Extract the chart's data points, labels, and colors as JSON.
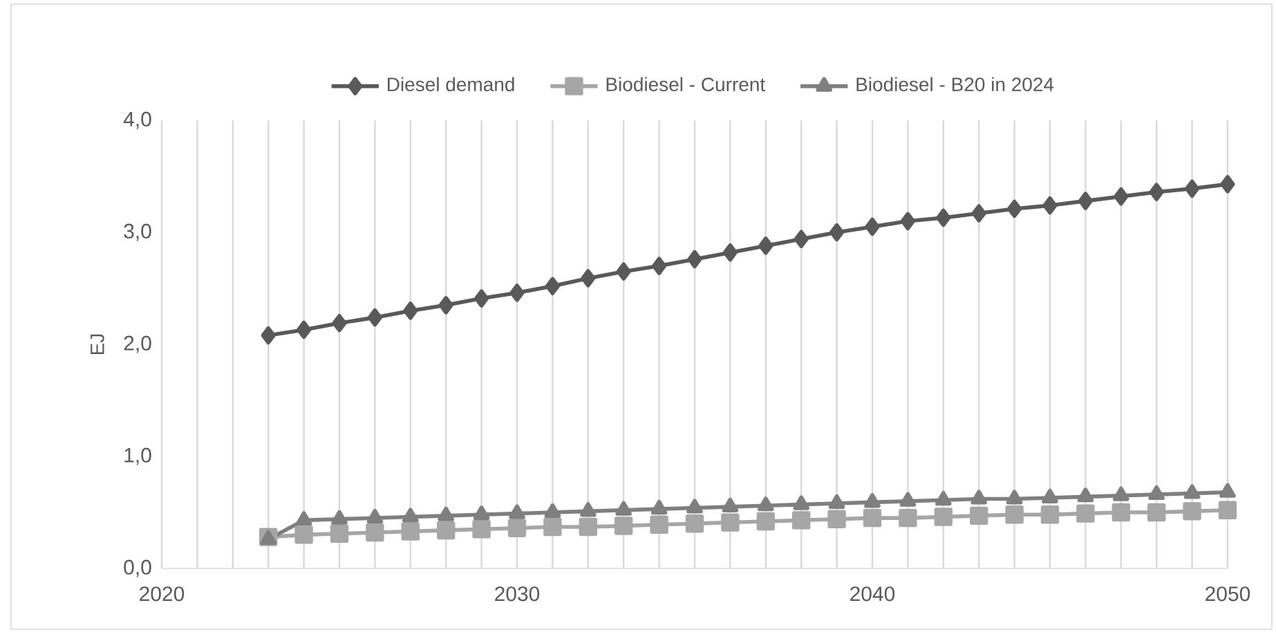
{
  "chart_data": {
    "type": "line",
    "x": [
      2023,
      2024,
      2025,
      2026,
      2027,
      2028,
      2029,
      2030,
      2031,
      2032,
      2033,
      2034,
      2035,
      2036,
      2037,
      2038,
      2039,
      2040,
      2041,
      2042,
      2043,
      2044,
      2045,
      2046,
      2047,
      2048,
      2049,
      2050
    ],
    "series": [
      {
        "name": "Diesel demand",
        "color": "#595959",
        "marker": "diamond",
        "values": [
          2.08,
          2.13,
          2.19,
          2.24,
          2.3,
          2.35,
          2.41,
          2.46,
          2.52,
          2.59,
          2.65,
          2.7,
          2.76,
          2.82,
          2.88,
          2.94,
          3.0,
          3.05,
          3.1,
          3.13,
          3.17,
          3.21,
          3.24,
          3.28,
          3.32,
          3.36,
          3.39,
          3.43
        ]
      },
      {
        "name": "Biodiesel - Current",
        "color": "#a6a6a6",
        "marker": "square",
        "values": [
          0.28,
          0.3,
          0.31,
          0.32,
          0.33,
          0.34,
          0.35,
          0.36,
          0.37,
          0.37,
          0.38,
          0.39,
          0.4,
          0.41,
          0.42,
          0.43,
          0.44,
          0.45,
          0.45,
          0.46,
          0.47,
          0.48,
          0.48,
          0.49,
          0.5,
          0.5,
          0.51,
          0.52
        ]
      },
      {
        "name": "Biodiesel - B20 in 2024",
        "color": "#7f7f7f",
        "marker": "triangle",
        "values": [
          0.26,
          0.43,
          0.44,
          0.45,
          0.46,
          0.47,
          0.48,
          0.49,
          0.5,
          0.51,
          0.52,
          0.53,
          0.54,
          0.55,
          0.56,
          0.57,
          0.58,
          0.59,
          0.6,
          0.61,
          0.62,
          0.62,
          0.63,
          0.64,
          0.65,
          0.66,
          0.67,
          0.68
        ]
      }
    ],
    "ylabel": "EJ",
    "xlim": [
      2020,
      2050
    ],
    "xticks": [
      2020,
      {
        "value": 2021,
        "label": null
      },
      {
        "value": 2022,
        "label": null
      },
      {
        "value": 2023,
        "label": null
      },
      {
        "value": 2024,
        "label": null
      },
      {
        "value": 2025,
        "label": null
      },
      {
        "value": 2026,
        "label": null
      },
      {
        "value": 2027,
        "label": null
      },
      {
        "value": 2028,
        "label": null
      },
      {
        "value": 2029,
        "label": null
      },
      2030,
      {
        "value": 2031,
        "label": null
      },
      {
        "value": 2032,
        "label": null
      },
      {
        "value": 2033,
        "label": null
      },
      {
        "value": 2034,
        "label": null
      },
      {
        "value": 2035,
        "label": null
      },
      {
        "value": 2036,
        "label": null
      },
      {
        "value": 2037,
        "label": null
      },
      {
        "value": 2038,
        "label": null
      },
      {
        "value": 2039,
        "label": null
      },
      2040,
      {
        "value": 2041,
        "label": null
      },
      {
        "value": 2042,
        "label": null
      },
      {
        "value": 2043,
        "label": null
      },
      {
        "value": 2044,
        "label": null
      },
      {
        "value": 2045,
        "label": null
      },
      {
        "value": 2046,
        "label": null
      },
      {
        "value": 2047,
        "label": null
      },
      {
        "value": 2048,
        "label": null
      },
      {
        "value": 2049,
        "label": null
      },
      2050
    ],
    "ylim": [
      0,
      4
    ],
    "yticks": [
      {
        "value": 0,
        "label": "0,0"
      },
      {
        "value": 1,
        "label": "1,0"
      },
      {
        "value": 2,
        "label": "2,0"
      },
      {
        "value": 3,
        "label": "3,0"
      },
      {
        "value": 4,
        "label": "4,0"
      }
    ],
    "grid": "x",
    "legend": "top",
    "line_style": "solid"
  }
}
